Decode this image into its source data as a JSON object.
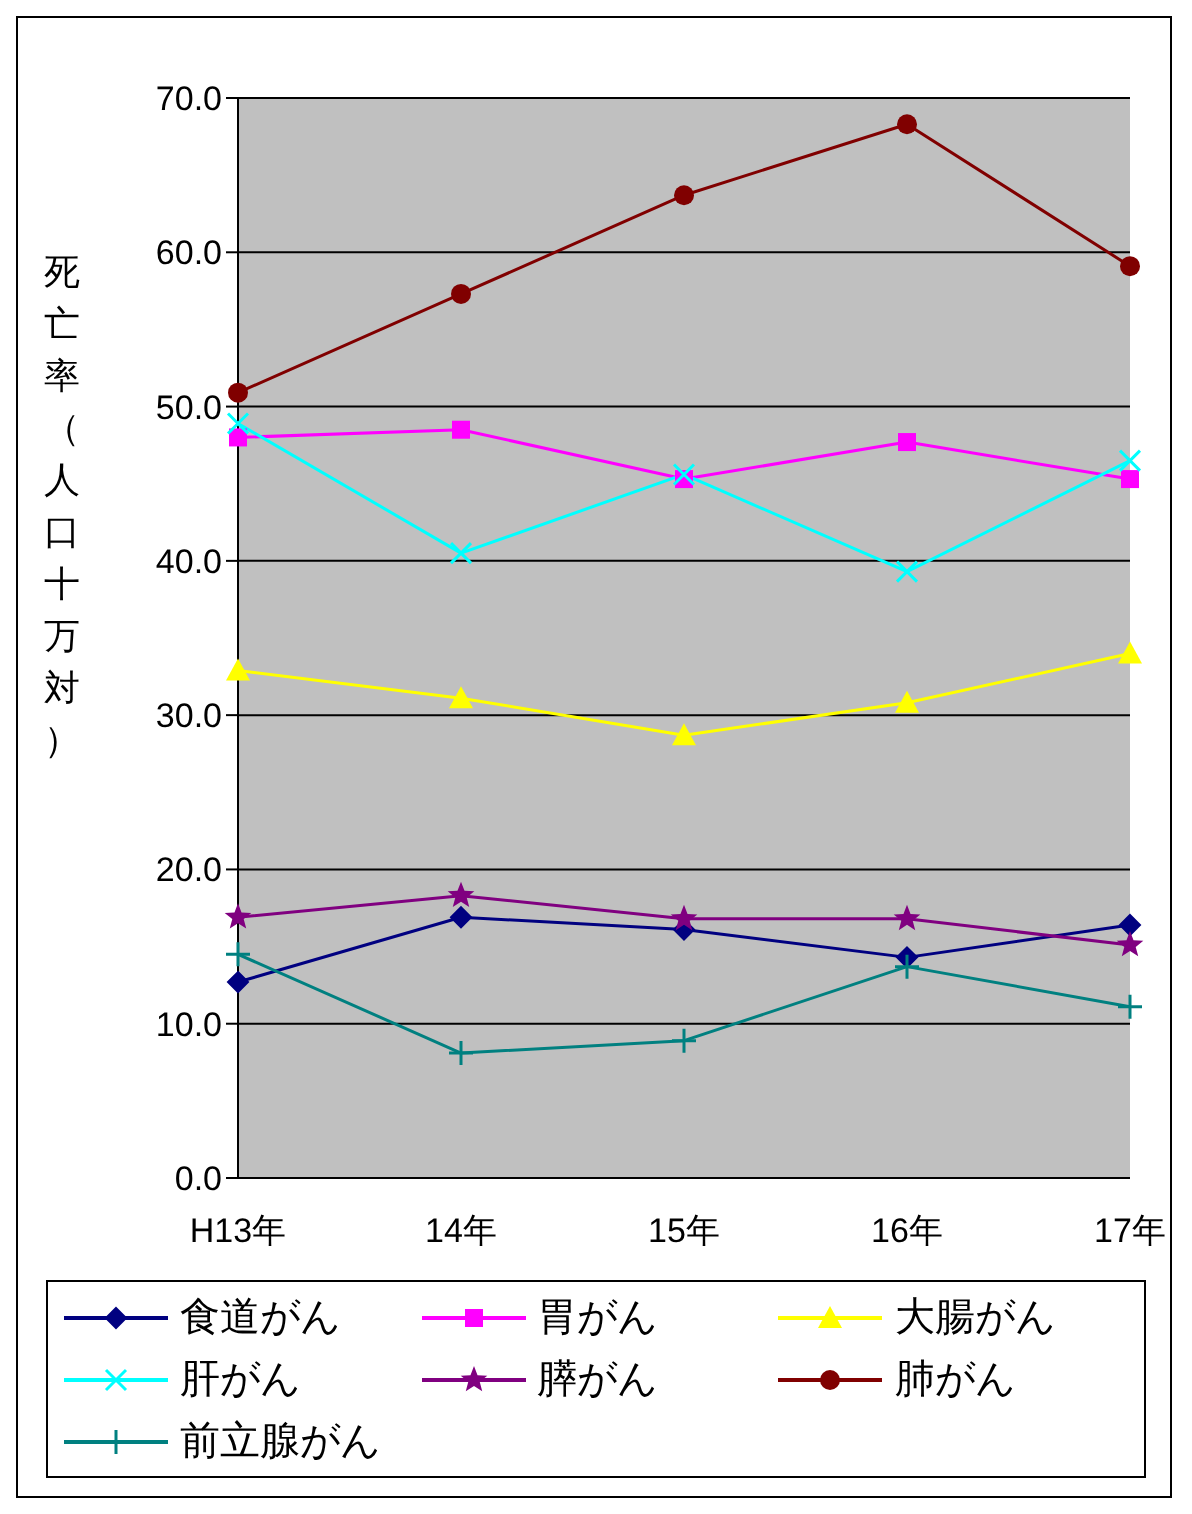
{
  "chart_data": {
    "type": "line",
    "ylabel": "死亡率（人口十万対）",
    "categories": [
      "H13年",
      "14年",
      "15年",
      "16年",
      "17年"
    ],
    "ylim": [
      0,
      70
    ],
    "yticks": [
      {
        "value": 0,
        "label": "0.0"
      },
      {
        "value": 10,
        "label": "10.0"
      },
      {
        "value": 20,
        "label": "20.0"
      },
      {
        "value": 30,
        "label": "30.0"
      },
      {
        "value": 40,
        "label": "40.0"
      },
      {
        "value": 50,
        "label": "50.0"
      },
      {
        "value": 60,
        "label": "60.0"
      },
      {
        "value": 70,
        "label": "70.0"
      }
    ],
    "grid": "y",
    "legend": "bottom",
    "series": [
      {
        "name": "食道がん",
        "color": "#000080",
        "marker": "diamond",
        "values": [
          12.7,
          16.9,
          16.1,
          14.3,
          16.4
        ]
      },
      {
        "name": "胃がん",
        "color": "#ff00ff",
        "marker": "square",
        "values": [
          48.0,
          48.5,
          45.3,
          47.7,
          45.3
        ]
      },
      {
        "name": "大腸がん",
        "color": "#ffff00",
        "marker": "triangle",
        "values": [
          32.9,
          31.1,
          28.7,
          30.8,
          34.0
        ]
      },
      {
        "name": "肝がん",
        "color": "#00ffff",
        "marker": "cross",
        "values": [
          48.9,
          40.5,
          45.6,
          39.3,
          46.5
        ]
      },
      {
        "name": "膵がん",
        "color": "#800080",
        "marker": "star",
        "values": [
          16.9,
          18.3,
          16.8,
          16.8,
          15.1
        ]
      },
      {
        "name": "肺がん",
        "color": "#800000",
        "marker": "circle",
        "values": [
          50.9,
          57.3,
          63.7,
          68.3,
          59.1
        ]
      },
      {
        "name": "前立腺がん",
        "color": "#008080",
        "marker": "plus",
        "values": [
          14.5,
          8.1,
          8.9,
          13.7,
          11.1
        ]
      }
    ]
  }
}
